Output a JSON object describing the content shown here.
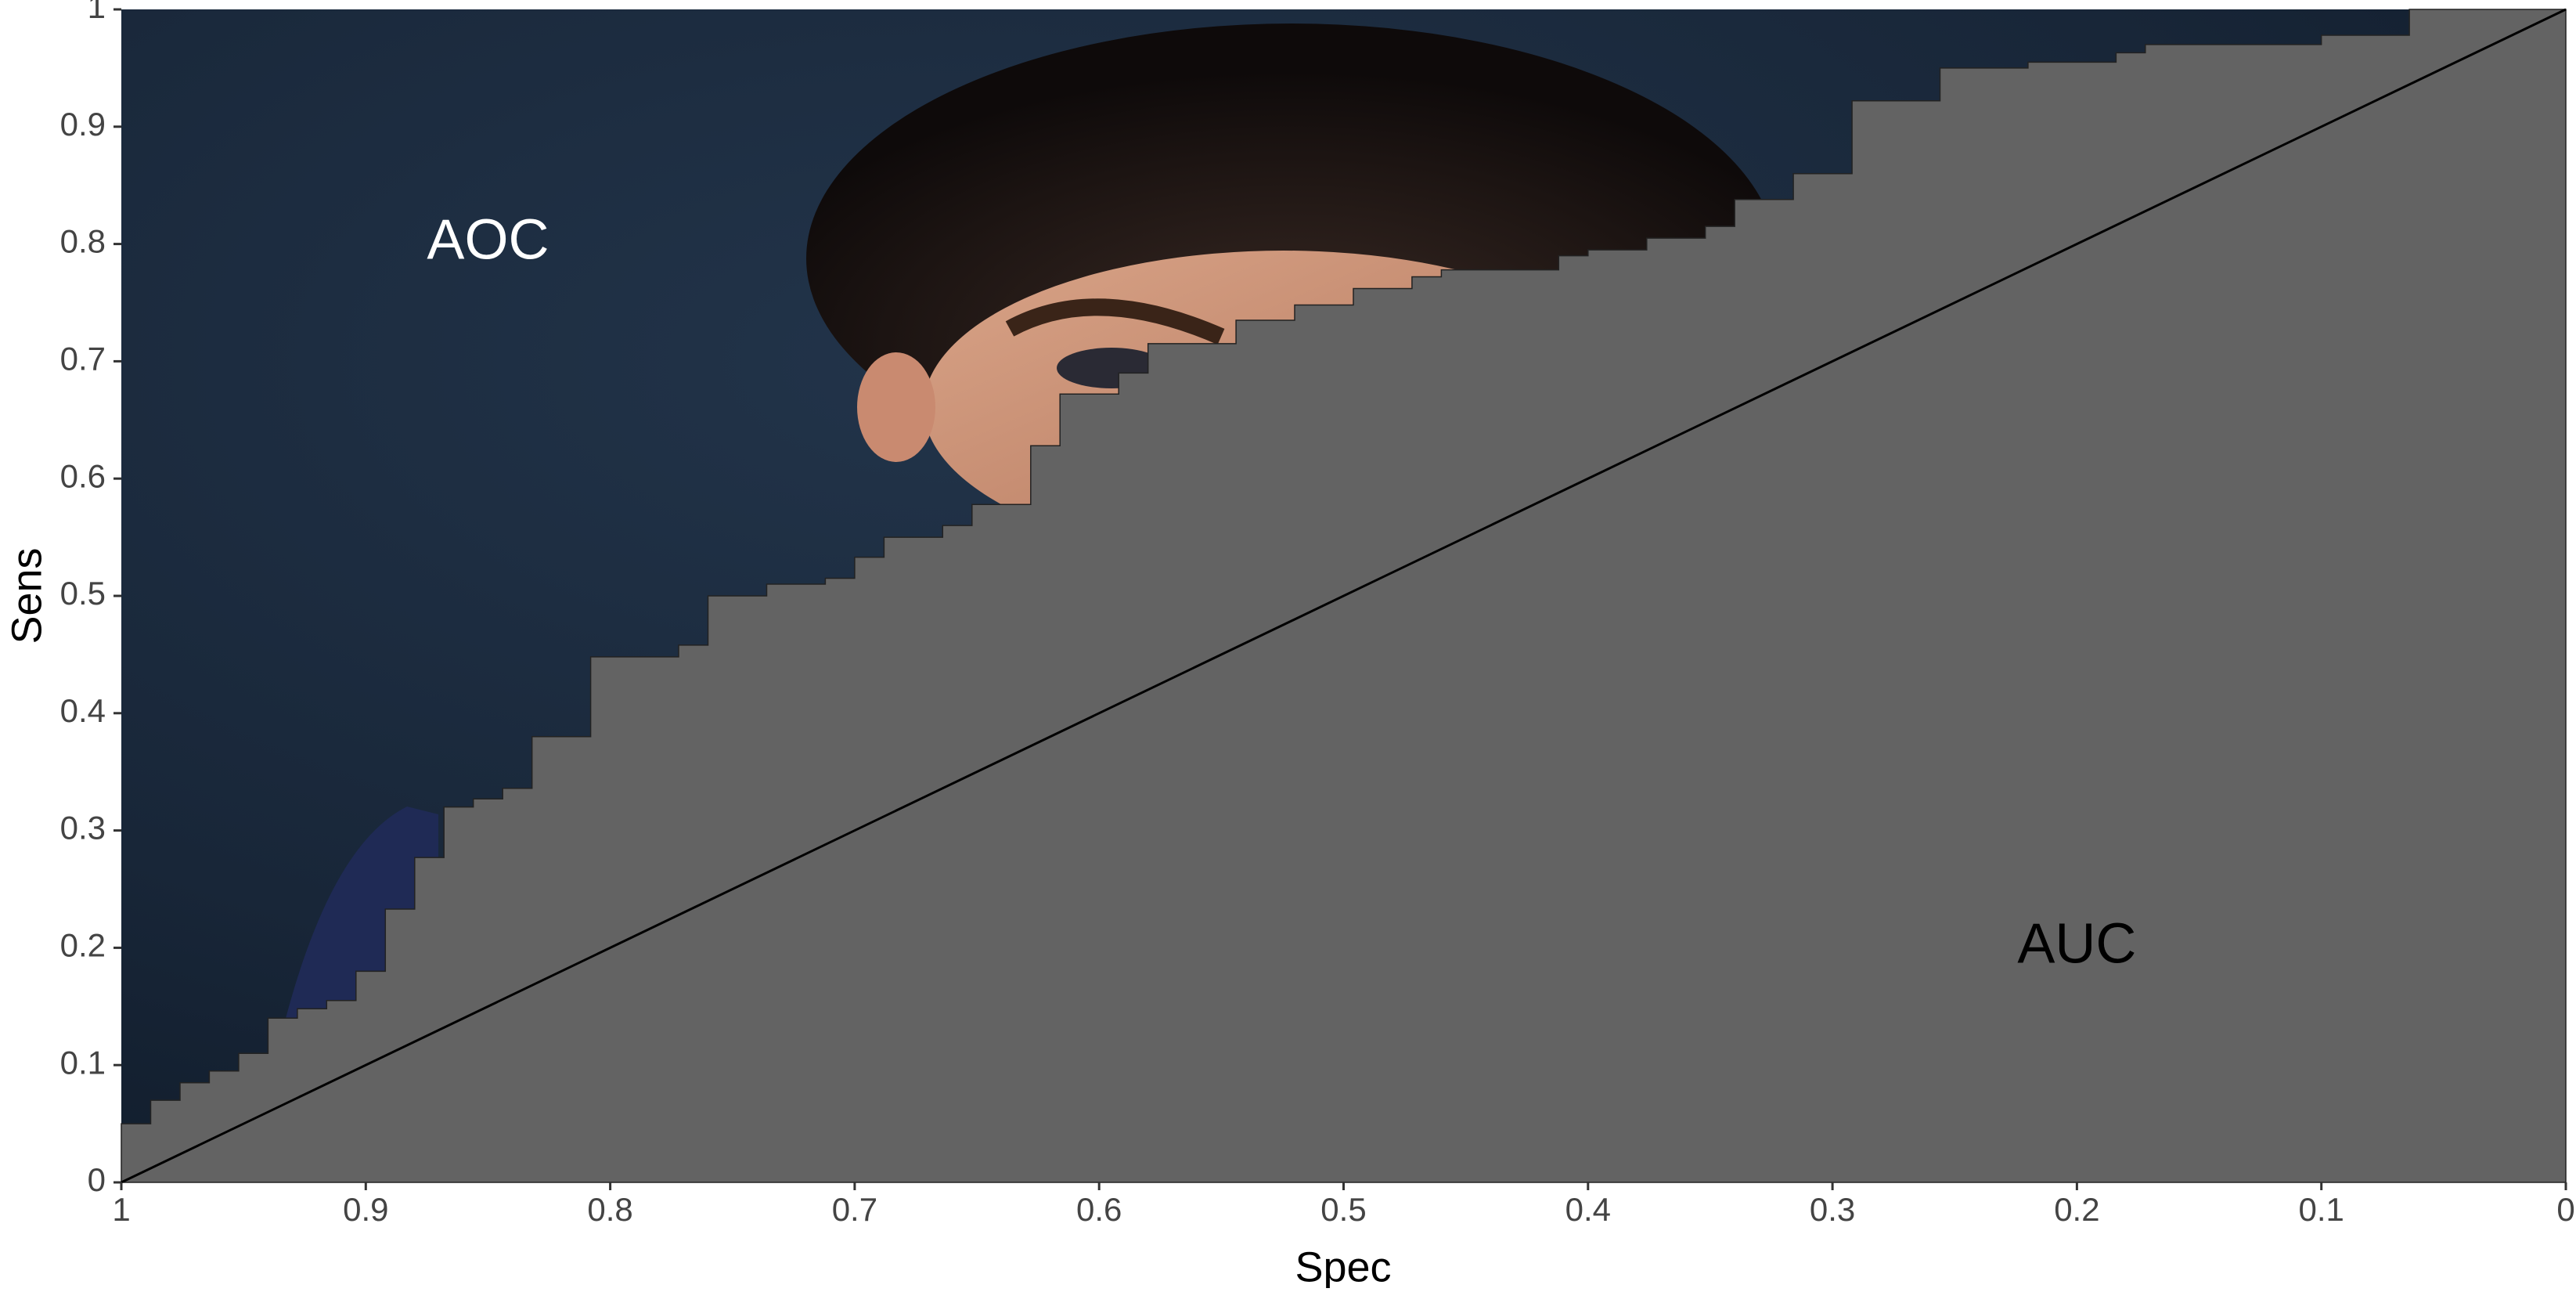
{
  "chart_data": {
    "type": "area",
    "xlabel": "Spec",
    "ylabel": "Sens",
    "x_reversed": true,
    "xlim": [
      1,
      0
    ],
    "ylim": [
      0,
      1
    ],
    "x_ticks": [
      "1",
      "0.9",
      "0.8",
      "0.7",
      "0.6",
      "0.5",
      "0.4",
      "0.3",
      "0.2",
      "0.1",
      "0"
    ],
    "y_ticks": [
      "0",
      "0.1",
      "0.2",
      "0.3",
      "0.4",
      "0.5",
      "0.6",
      "0.7",
      "0.8",
      "0.9",
      "1"
    ],
    "grid": false,
    "legend": "none",
    "annotations": [
      {
        "text": "AOC",
        "x": 0.85,
        "y": 0.8,
        "color": "white"
      },
      {
        "text": "AUC",
        "x": 0.2,
        "y": 0.2,
        "color": "black"
      }
    ],
    "reference_line": {
      "from": [
        1,
        0
      ],
      "to": [
        0,
        1
      ]
    },
    "colors": {
      "auc_fill": "#636363",
      "aoc_background": "#182638",
      "reference_line": "#000000",
      "axis_text": "#444444",
      "axis_title": "#000000"
    },
    "roc_curve": {
      "spec": [
        1,
        0.988,
        0.988,
        0.976,
        0.976,
        0.964,
        0.964,
        0.952,
        0.952,
        0.94,
        0.94,
        0.928,
        0.928,
        0.916,
        0.916,
        0.904,
        0.904,
        0.892,
        0.892,
        0.88,
        0.88,
        0.868,
        0.868,
        0.856,
        0.856,
        0.844,
        0.844,
        0.832,
        0.832,
        0.808,
        0.808,
        0.772,
        0.772,
        0.76,
        0.76,
        0.736,
        0.736,
        0.712,
        0.712,
        0.7,
        0.7,
        0.688,
        0.688,
        0.664,
        0.664,
        0.652,
        0.652,
        0.628,
        0.628,
        0.616,
        0.616,
        0.592,
        0.592,
        0.58,
        0.58,
        0.544,
        0.544,
        0.52,
        0.52,
        0.496,
        0.496,
        0.472,
        0.472,
        0.46,
        0.46,
        0.412,
        0.412,
        0.4,
        0.4,
        0.376,
        0.376,
        0.352,
        0.352,
        0.34,
        0.34,
        0.316,
        0.316,
        0.292,
        0.292,
        0.256,
        0.256,
        0.22,
        0.22,
        0.184,
        0.184,
        0.172,
        0.172,
        0.1,
        0.1,
        0.064,
        0.064,
        0
      ],
      "sens": [
        0.05,
        0.05,
        0.07,
        0.07,
        0.085,
        0.085,
        0.095,
        0.095,
        0.11,
        0.11,
        0.14,
        0.14,
        0.148,
        0.148,
        0.155,
        0.155,
        0.18,
        0.18,
        0.233,
        0.233,
        0.277,
        0.277,
        0.32,
        0.32,
        0.327,
        0.327,
        0.336,
        0.336,
        0.38,
        0.38,
        0.448,
        0.448,
        0.458,
        0.458,
        0.5,
        0.5,
        0.51,
        0.51,
        0.515,
        0.515,
        0.533,
        0.533,
        0.55,
        0.55,
        0.56,
        0.56,
        0.578,
        0.578,
        0.628,
        0.628,
        0.672,
        0.672,
        0.69,
        0.69,
        0.715,
        0.715,
        0.735,
        0.735,
        0.748,
        0.748,
        0.762,
        0.762,
        0.772,
        0.772,
        0.778,
        0.778,
        0.79,
        0.79,
        0.795,
        0.795,
        0.805,
        0.805,
        0.815,
        0.815,
        0.838,
        0.838,
        0.86,
        0.86,
        0.922,
        0.922,
        0.95,
        0.95,
        0.955,
        0.955,
        0.963,
        0.963,
        0.97,
        0.97,
        0.978,
        0.978,
        1,
        1
      ]
    }
  }
}
